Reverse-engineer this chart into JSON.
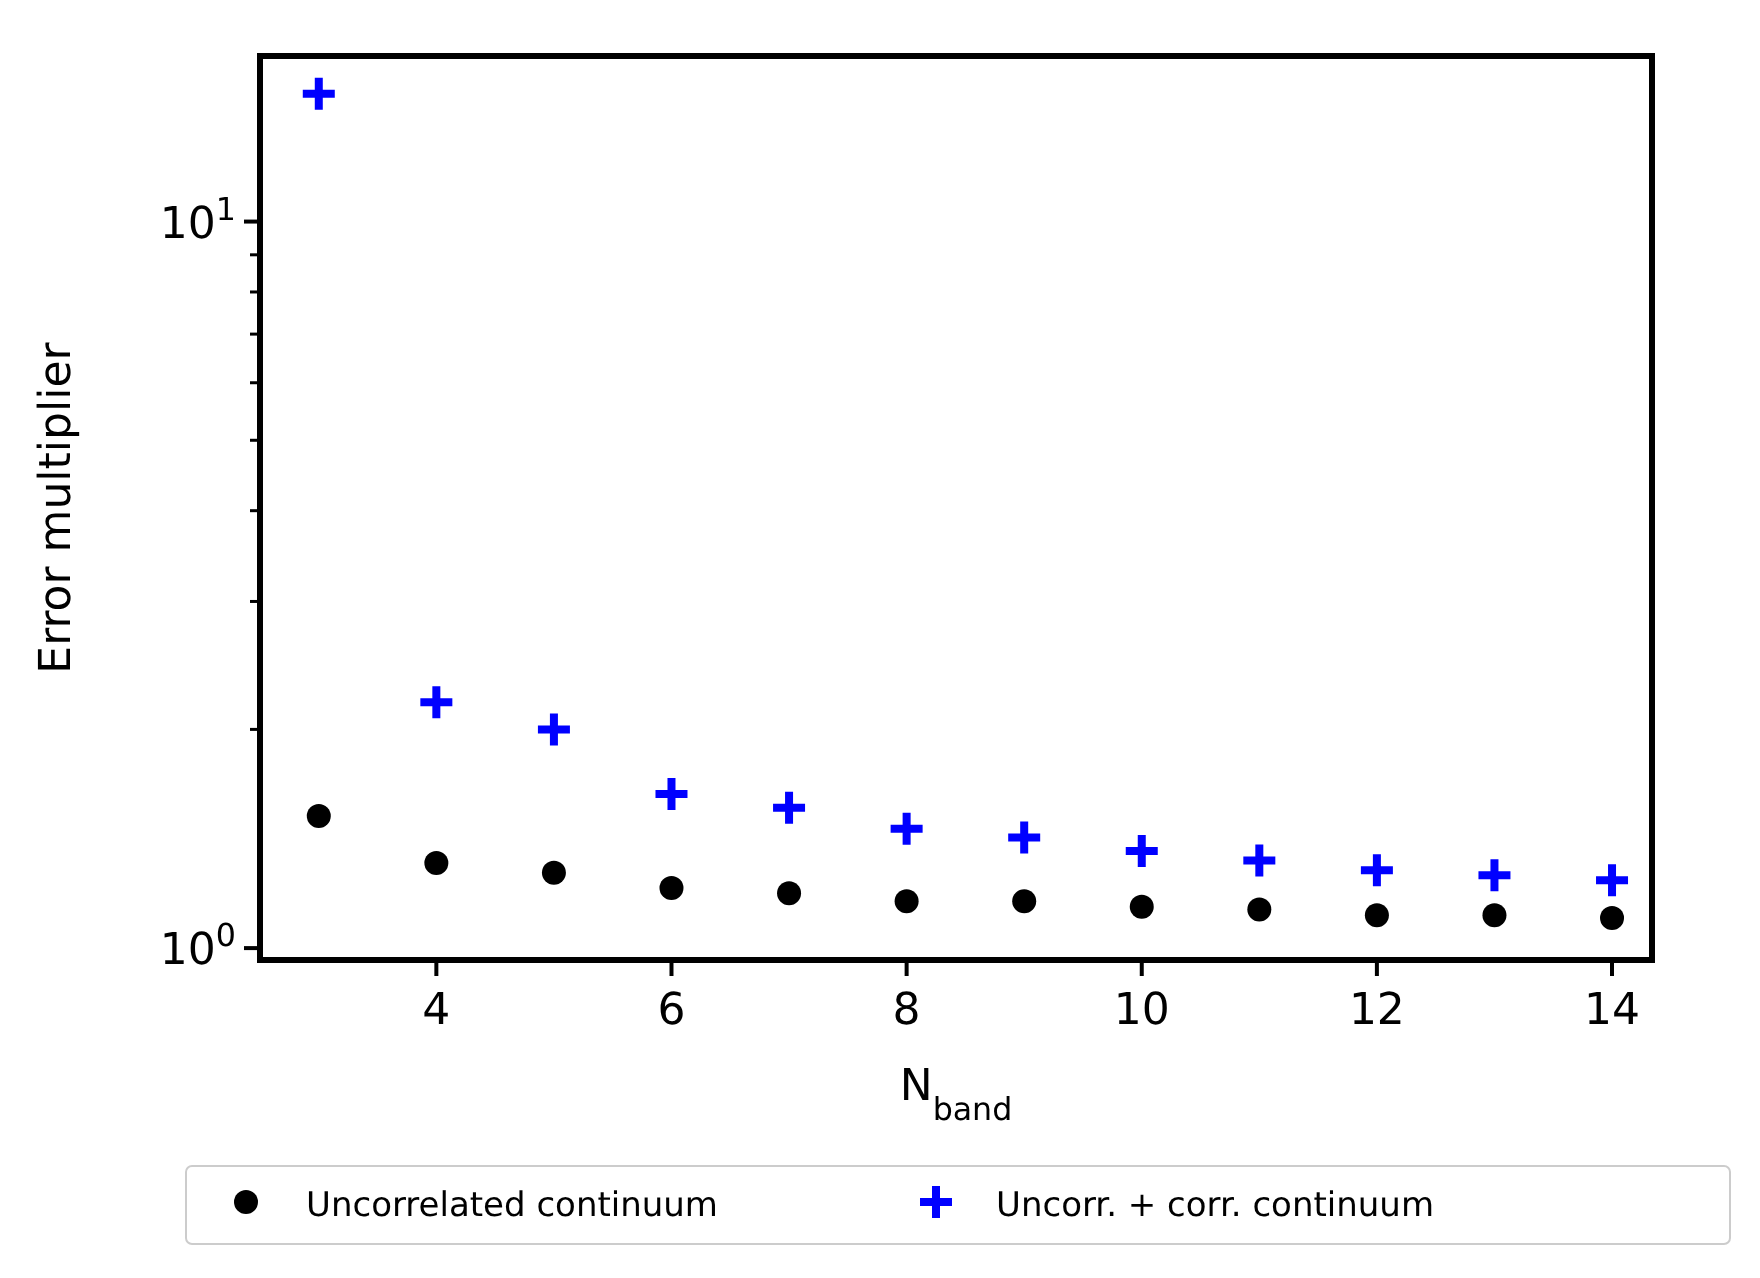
{
  "chart_data": {
    "type": "scatter",
    "xlabel": "N$_{band}$",
    "ylabel": "Error multiplier",
    "log": "y",
    "x": [
      3,
      4,
      5,
      6,
      7,
      8,
      9,
      10,
      11,
      12,
      13,
      14
    ],
    "xlim": [
      2.5,
      14.34
    ],
    "xticks": [
      4,
      6,
      8,
      10,
      12,
      14
    ],
    "ylim": [
      0.963,
      16.9
    ],
    "yticks": [
      {
        "value": 1,
        "label": "10$^{0}$"
      },
      {
        "value": 2,
        "label": null
      },
      {
        "value": 3,
        "label": null
      },
      {
        "value": 4,
        "label": null
      },
      {
        "value": 5,
        "label": null
      },
      {
        "value": 6,
        "label": null
      },
      {
        "value": 7,
        "label": null
      },
      {
        "value": 8,
        "label": null
      },
      {
        "value": 9,
        "label": null
      },
      {
        "value": 10,
        "label": "10$^{1}$"
      }
    ],
    "grid": false,
    "legend": "bottom",
    "series": [
      {
        "name": "Uncorrelated continuum",
        "color": "#000000",
        "marker": "circle",
        "values": [
          1.52,
          1.31,
          1.27,
          1.21,
          1.19,
          1.16,
          1.16,
          1.14,
          1.13,
          1.11,
          1.11,
          1.1
        ]
      },
      {
        "name": "Uncorr. + corr. continuum",
        "color": "#0000ff",
        "marker": "cross",
        "values": [
          15.0,
          2.18,
          2.0,
          1.63,
          1.56,
          1.46,
          1.42,
          1.36,
          1.32,
          1.28,
          1.26,
          1.24
        ]
      }
    ]
  }
}
